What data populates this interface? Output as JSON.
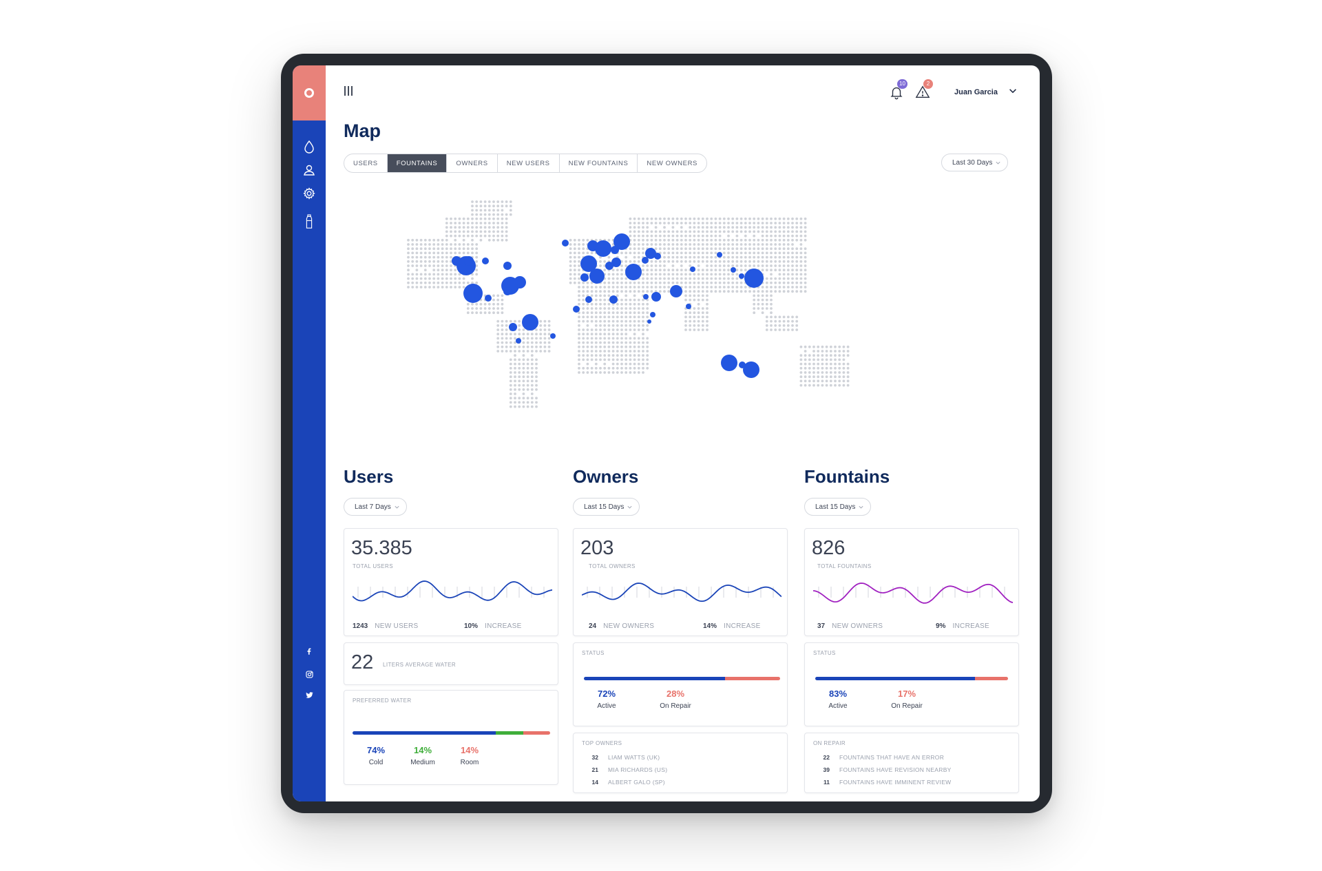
{
  "header": {
    "notifications_count": "10",
    "alerts_count": "2",
    "user_name": "Juan Garcia"
  },
  "page": {
    "title": "Map",
    "tabs": [
      "USERS",
      "FOUNTAINS",
      "OWNERS",
      "NEW USERS",
      "NEW FOUNTAINS",
      "NEW OWNERS"
    ],
    "active_tab": "FOUNTAINS",
    "range_select": "Last 30 Days"
  },
  "sidebar": {
    "items": [
      "drop-icon",
      "user-icon",
      "gear-icon",
      "bottle-icon"
    ],
    "social": [
      "facebook-icon",
      "instagram-icon",
      "twitter-icon"
    ]
  },
  "users": {
    "title": "Users",
    "range": "Last 7 Days",
    "total": "35.385",
    "total_label": "TOTAL USERS",
    "new_count": "1243",
    "new_label": "NEW USERS",
    "increase_pct": "10%",
    "increase_label": "INCREASE",
    "water_value": "22",
    "water_label": "LITERS AVERAGE WATER",
    "preferred_title": "PREFERRED WATER",
    "preferred": [
      {
        "pct": "74%",
        "label": "Cold",
        "color": "#1a44b8",
        "value": 74
      },
      {
        "pct": "14%",
        "label": "Medium",
        "color": "#3fae3a",
        "value": 14
      },
      {
        "pct": "14%",
        "label": "Room",
        "color": "#e8726a",
        "value": 14
      }
    ]
  },
  "owners": {
    "title": "Owners",
    "range": "Last 15 Days",
    "total": "203",
    "total_label": "TOTAL OWNERS",
    "new_count": "24",
    "new_label": "NEW OWNERS",
    "increase_pct": "14%",
    "increase_label": "INCREASE",
    "status_title": "STATUS",
    "status": [
      {
        "pct": "72%",
        "label": "Active",
        "color": "#1a44b8",
        "value": 72
      },
      {
        "pct": "28%",
        "label": "On Repair",
        "color": "#e8726a",
        "value": 28
      }
    ],
    "top_title": "TOP OWNERS",
    "top": [
      {
        "n": "32",
        "name": "LIAM WATTS (UK)"
      },
      {
        "n": "21",
        "name": "MIA RICHARDS (US)"
      },
      {
        "n": "14",
        "name": "ALBERT GALO (SP)"
      }
    ]
  },
  "fountains": {
    "title": "Fountains",
    "range": "Last 15 Days",
    "total": "826",
    "total_label": "TOTAL FOUNTAINS",
    "new_count": "37",
    "new_label": "NEW OWNERS",
    "increase_pct": "9%",
    "increase_label": "INCREASE",
    "status_title": "STATUS",
    "status": [
      {
        "pct": "83%",
        "label": "Active",
        "color": "#1a44b8",
        "value": 83
      },
      {
        "pct": "17%",
        "label": "On Repair",
        "color": "#e8726a",
        "value": 17
      }
    ],
    "repair_title": "ON REPAIR",
    "repair": [
      {
        "n": "22",
        "name": "FOUNTAINS THAT HAVE AN ERROR"
      },
      {
        "n": "39",
        "name": "FOUNTAINS HAVE REVISION NEARBY"
      },
      {
        "n": "11",
        "name": "FOUNTAINS HAVE IMMINENT REVIEW"
      }
    ]
  },
  "colors": {
    "sidebar": "#1a44b8",
    "accent": "#e8827a",
    "map_dot": "#cfd2d8",
    "marker": "#2356e0",
    "wave_users": "#1a44b8",
    "wave_fountains": "#a020c0"
  }
}
